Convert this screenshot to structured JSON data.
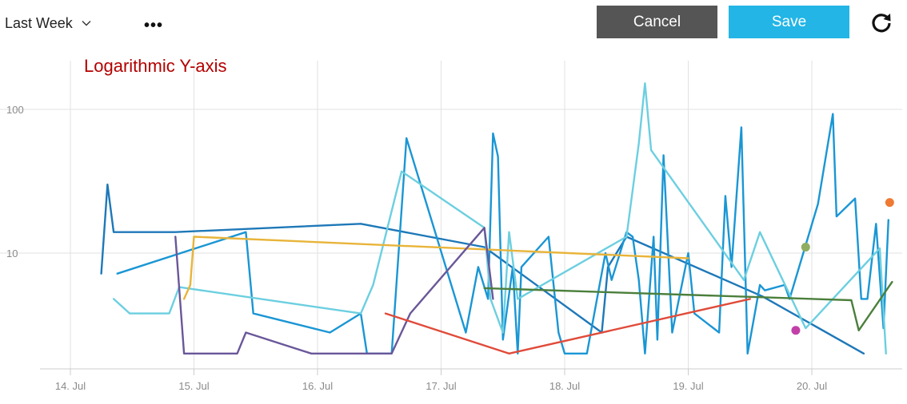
{
  "toolbar": {
    "range_label": "Last Week",
    "more_label": "•••",
    "cancel_label": "Cancel",
    "save_label": "Save",
    "refresh_icon": "refresh-icon"
  },
  "chart_data": {
    "type": "line",
    "title": "Logarithmic Y-axis",
    "title_color": "#b30000",
    "y_scale": "log",
    "ylim": [
      2,
      200
    ],
    "xlim": [
      13.95,
      20.75
    ],
    "grid": true,
    "y_ticks": [
      {
        "value": 10,
        "label": "10"
      },
      {
        "value": 100,
        "label": "100"
      }
    ],
    "x_ticks": [
      {
        "value": 14,
        "label": "14. Jul"
      },
      {
        "value": 15,
        "label": "15. Jul"
      },
      {
        "value": 16,
        "label": "16. Jul"
      },
      {
        "value": 17,
        "label": "17. Jul"
      },
      {
        "value": 18,
        "label": "18. Jul"
      },
      {
        "value": 19,
        "label": "19. Jul"
      },
      {
        "value": 20,
        "label": "20. Jul"
      }
    ],
    "series": [
      {
        "color": "#1e78b8",
        "points": [
          [
            14.25,
            7.2
          ],
          [
            14.3,
            30
          ],
          [
            14.35,
            14
          ],
          [
            14.85,
            14
          ],
          [
            16.35,
            16
          ],
          [
            17.35,
            11
          ],
          [
            18.3,
            2.8
          ],
          [
            18.35,
            8
          ],
          [
            18.5,
            13
          ],
          [
            19.6,
            5
          ],
          [
            20.42,
            2
          ]
        ]
      },
      {
        "color": "#1a96d4",
        "points": [
          [
            14.38,
            7.2
          ],
          [
            15.42,
            14
          ],
          [
            15.48,
            3.8
          ],
          [
            16.1,
            2.8
          ],
          [
            16.35,
            3.8
          ],
          [
            16.4,
            2
          ],
          [
            16.6,
            2
          ],
          [
            16.72,
            63
          ],
          [
            17.2,
            2.8
          ],
          [
            17.3,
            8
          ],
          [
            17.38,
            4.8
          ],
          [
            17.42,
            68
          ],
          [
            17.46,
            47
          ],
          [
            17.5,
            2.5
          ],
          [
            17.58,
            8
          ],
          [
            17.62,
            2
          ],
          [
            17.65,
            8
          ],
          [
            17.87,
            13
          ],
          [
            17.95,
            2.8
          ],
          [
            18.0,
            2
          ],
          [
            18.18,
            2
          ],
          [
            18.33,
            10
          ],
          [
            18.38,
            6.5
          ],
          [
            18.5,
            14
          ],
          [
            18.55,
            13
          ],
          [
            18.6,
            6.5
          ],
          [
            18.65,
            2
          ],
          [
            18.72,
            13
          ],
          [
            18.75,
            2.5
          ],
          [
            18.8,
            48
          ],
          [
            18.87,
            2.8
          ],
          [
            19.0,
            10
          ],
          [
            19.05,
            3.8
          ],
          [
            19.25,
            2.8
          ],
          [
            19.3,
            25
          ],
          [
            19.35,
            8
          ],
          [
            19.43,
            75
          ],
          [
            19.48,
            2
          ],
          [
            19.58,
            6
          ],
          [
            19.62,
            5.5
          ],
          [
            19.78,
            6
          ],
          [
            19.82,
            4.8
          ],
          [
            20.05,
            22
          ],
          [
            20.17,
            93
          ],
          [
            20.2,
            18
          ],
          [
            20.35,
            24
          ],
          [
            20.4,
            4.8
          ],
          [
            20.45,
            4.8
          ],
          [
            20.52,
            16
          ],
          [
            20.58,
            3
          ],
          [
            20.62,
            17
          ]
        ]
      },
      {
        "color": "#6ccfe0",
        "points": [
          [
            14.35,
            4.8
          ],
          [
            14.48,
            3.8
          ],
          [
            14.8,
            3.8
          ],
          [
            14.88,
            5.8
          ],
          [
            16.35,
            3.8
          ],
          [
            16.45,
            6
          ],
          [
            16.68,
            37
          ],
          [
            17.35,
            15
          ],
          [
            17.4,
            4.8
          ],
          [
            17.5,
            2.8
          ],
          [
            17.55,
            14
          ],
          [
            17.62,
            4.8
          ],
          [
            18.5,
            13
          ],
          [
            18.6,
            58
          ],
          [
            18.65,
            152
          ],
          [
            18.7,
            52
          ],
          [
            19.45,
            6.5
          ],
          [
            19.58,
            14
          ],
          [
            19.95,
            3
          ],
          [
            20.55,
            10.8
          ],
          [
            20.6,
            2
          ]
        ]
      },
      {
        "color": "#e8b43a",
        "points": [
          [
            14.92,
            4.8
          ],
          [
            14.97,
            6
          ],
          [
            15.0,
            13
          ],
          [
            19.0,
            9.2
          ]
        ]
      },
      {
        "color": "#6a5799",
        "points": [
          [
            14.85,
            13
          ],
          [
            14.92,
            2
          ],
          [
            15.35,
            2
          ],
          [
            15.42,
            2.8
          ],
          [
            15.95,
            2
          ],
          [
            16.6,
            2
          ],
          [
            16.75,
            3.8
          ],
          [
            17.35,
            15
          ],
          [
            17.42,
            4.8
          ]
        ]
      },
      {
        "color": "#e04b3a",
        "points": [
          [
            16.55,
            3.8
          ],
          [
            17.55,
            2
          ],
          [
            19.5,
            4.8
          ]
        ]
      },
      {
        "color": "#4b7f3c",
        "points": [
          [
            17.35,
            5.7
          ],
          [
            20.32,
            4.7
          ],
          [
            20.38,
            2.9
          ],
          [
            20.65,
            6.3
          ]
        ]
      }
    ],
    "markers": [
      {
        "color": "#8fae63",
        "x": 19.95,
        "y": 11
      },
      {
        "color": "#c240a8",
        "x": 19.87,
        "y": 2.9
      },
      {
        "color": "#ee7a33",
        "x": 20.63,
        "y": 22.5
      }
    ]
  }
}
